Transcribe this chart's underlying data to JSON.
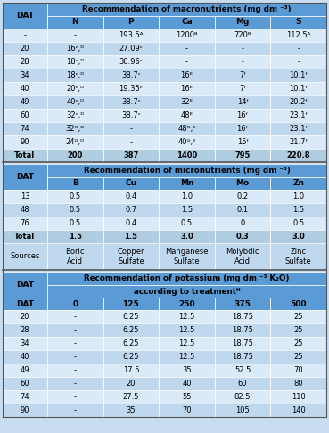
{
  "bg_color": "#c8ddf0",
  "header_bg": "#5b9bd5",
  "row_light": "#daeaf8",
  "row_dark": "#c0d8ee",
  "total_bg": "#b0cce0",
  "sep_color": "#555555",
  "macro_header": "Recommendation of macronutrients (mg dm ⁻³)",
  "macro_cols": [
    "DAT",
    "N",
    "P",
    "Ca",
    "Mg",
    "S"
  ],
  "macro_rows": [
    [
      "-",
      "-",
      "193.5ᴬ",
      "1200ᴮ",
      "720ᴮ",
      "112.5ᴬ"
    ],
    [
      "20",
      "16ᶜ,ᴰ",
      "27.09ᶜ",
      "-",
      "-",
      "-"
    ],
    [
      "28",
      "18ᶜ,ᴰ",
      "30.96ᶜ",
      "-",
      "-",
      "-"
    ],
    [
      "34",
      "18ᶜ,ᴰ",
      "38.7ᶜ",
      "16ᴱ",
      "7ᶠ",
      "10.1ᶠ"
    ],
    [
      "40",
      "20ᶜ,ᴰ",
      "19.35ᶜ",
      "16ᴱ",
      "7ᶠ",
      "10.1ᶠ"
    ],
    [
      "49",
      "40ᶜ,ᴰ",
      "38.7ᶜ",
      "32ᴱ",
      "14ᶠ",
      "20.2ᶠ"
    ],
    [
      "60",
      "32ᶜ,ᴰ",
      "38.7ᶜ",
      "48ᴱ",
      "16ᶠ",
      "23.1ᶠ"
    ],
    [
      "74",
      "32ᴳ,ᴰ",
      "-",
      "48ᴳ,ᴱ",
      "16ᶠ",
      "23.1ᶠ"
    ],
    [
      "90",
      "24ᴳ,ᴰ",
      "-",
      "40ᴳ,ᴱ",
      "15ᶠ",
      "21.7ᶠ"
    ],
    [
      "Total",
      "200",
      "387",
      "1400",
      "795",
      "220.8"
    ]
  ],
  "micro_header": "Recommendation of micronutrients (mg dm ⁻³)",
  "micro_cols": [
    "DAT",
    "B",
    "Cu",
    "Mn",
    "Mo",
    "Zn"
  ],
  "micro_rows": [
    [
      "13",
      "0.5",
      "0.4",
      "1.0",
      "0.2",
      "1.0"
    ],
    [
      "48",
      "0.5",
      "0.7",
      "1.5",
      "0.1",
      "1.5"
    ],
    [
      "76",
      "0.5",
      "0.4",
      "0.5",
      "0",
      "0.5"
    ],
    [
      "Total",
      "1.5",
      "1.5",
      "3.0",
      "0.3",
      "3.0"
    ],
    [
      "Sources",
      "Boric\nAcid",
      "Copper\nSulfate",
      "Manganese\nSulfate",
      "Molybdic\nAcid",
      "Zinc\nSulfate"
    ]
  ],
  "potassium_header_line1": "Recommendation of potassium (mg dm ⁻³ K₂O)",
  "potassium_header_line2": "according to treatmentᴴ",
  "potassium_cols": [
    "DAT",
    "0",
    "125",
    "250",
    "375",
    "500"
  ],
  "potassium_rows": [
    [
      "20",
      "-",
      "6.25",
      "12.5",
      "18.75",
      "25"
    ],
    [
      "28",
      "-",
      "6.25",
      "12.5",
      "18.75",
      "25"
    ],
    [
      "34",
      "-",
      "6.25",
      "12.5",
      "18.75",
      "25"
    ],
    [
      "40",
      "-",
      "6.25",
      "12.5",
      "18.75",
      "25"
    ],
    [
      "49",
      "-",
      "17.5",
      "35",
      "52.5",
      "70"
    ],
    [
      "60",
      "-",
      "20",
      "40",
      "60",
      "80"
    ],
    [
      "74",
      "-",
      "27.5",
      "55",
      "82.5",
      "110"
    ],
    [
      "90",
      "-",
      "35",
      "70",
      "105",
      "140"
    ]
  ]
}
